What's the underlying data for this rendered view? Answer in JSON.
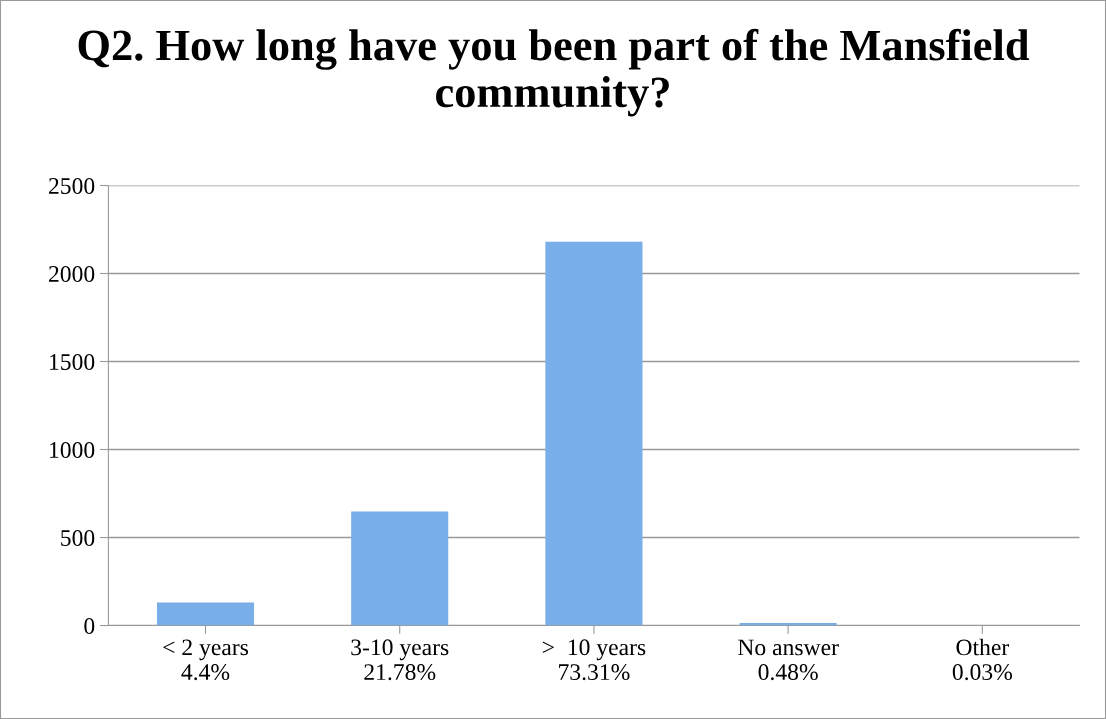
{
  "chart_data": {
    "type": "bar",
    "title": "Q2. How long have you been part of the Mansfield community?",
    "categories": [
      "< 2 years\n4.4%",
      "3-10 years\n21.78%",
      ">  10 years\n73.31%",
      "No answer\n0.48%",
      "Other\n0.03%"
    ],
    "values": [
      131,
      648,
      2180,
      14,
      null
    ],
    "color": "#7aaee8",
    "ylim": [
      0,
      2500
    ],
    "yticks": [
      0,
      500,
      1000,
      1500,
      2000,
      2500
    ],
    "grid": "y",
    "legend": false
  }
}
